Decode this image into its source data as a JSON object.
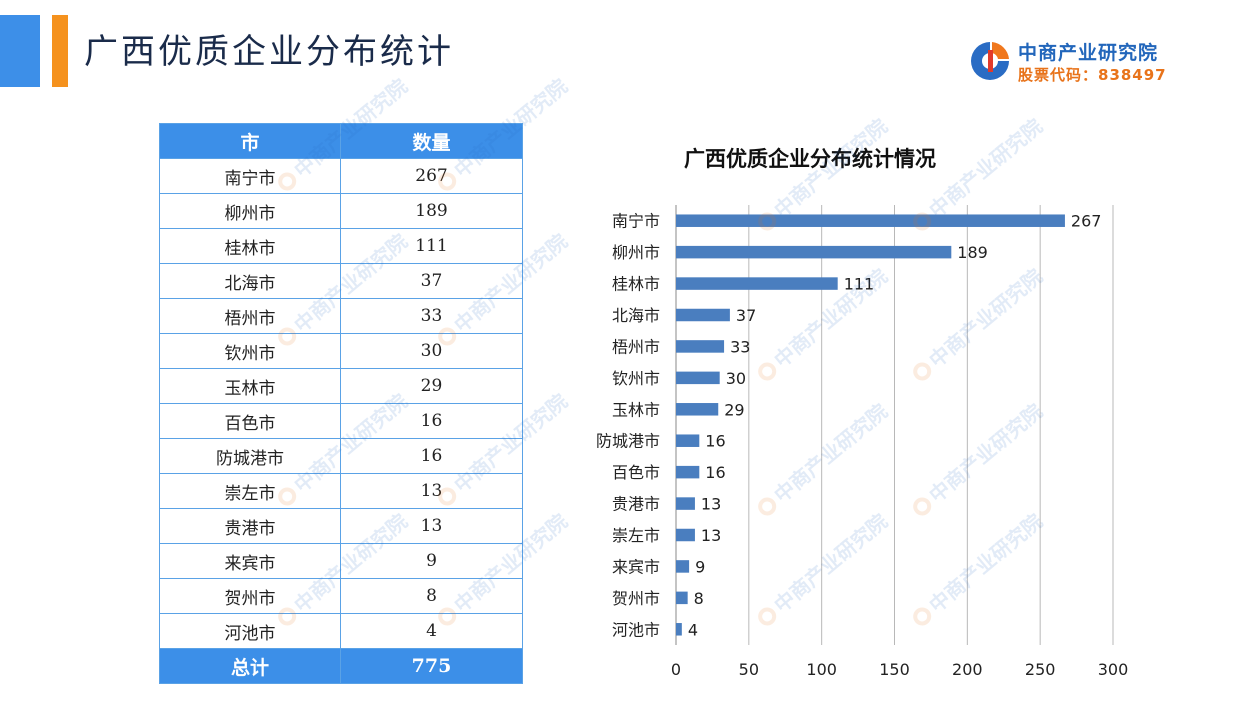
{
  "header": {
    "title": "广西优质企业分布统计",
    "logo_name": "中商产业研究院",
    "logo_stock": "股票代码：838497",
    "colors": {
      "accent_blue": "#3d8fe8",
      "accent_orange": "#f5921e"
    }
  },
  "table": {
    "headers": [
      "市",
      "数量"
    ],
    "rows": [
      {
        "city": "南宁市",
        "count": "267"
      },
      {
        "city": "柳州市",
        "count": "189"
      },
      {
        "city": "桂林市",
        "count": "111"
      },
      {
        "city": "北海市",
        "count": "37"
      },
      {
        "city": "梧州市",
        "count": "33"
      },
      {
        "city": "钦州市",
        "count": "30"
      },
      {
        "city": "玉林市",
        "count": "29"
      },
      {
        "city": "百色市",
        "count": "16"
      },
      {
        "city": "防城港市",
        "count": "16"
      },
      {
        "city": "崇左市",
        "count": "13"
      },
      {
        "city": "贵港市",
        "count": "13"
      },
      {
        "city": "来宾市",
        "count": "9"
      },
      {
        "city": "贺州市",
        "count": "8"
      },
      {
        "city": "河池市",
        "count": "4"
      }
    ],
    "total_label": "总计",
    "total_value": "775"
  },
  "chart_data": {
    "type": "bar",
    "orientation": "horizontal",
    "title": "广西优质企业分布统计情况",
    "categories": [
      "南宁市",
      "柳州市",
      "桂林市",
      "北海市",
      "梧州市",
      "钦州市",
      "玉林市",
      "防城港市",
      "百色市",
      "贵港市",
      "崇左市",
      "来宾市",
      "贺州市",
      "河池市"
    ],
    "values": [
      267,
      189,
      111,
      37,
      33,
      30,
      29,
      16,
      16,
      13,
      13,
      9,
      8,
      4
    ],
    "xlim": [
      0,
      300
    ],
    "xticks": [
      0,
      50,
      100,
      150,
      200,
      250,
      300
    ],
    "grid": true,
    "legend": "none",
    "bar_color": "#4a7ebf"
  }
}
